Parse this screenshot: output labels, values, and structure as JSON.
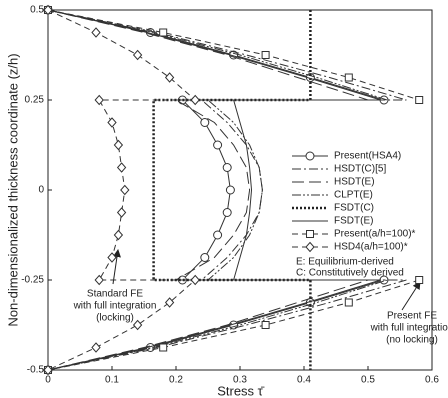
{
  "chart_data": {
    "type": "line",
    "xlabel": "Stress τ̄",
    "ylabel": "Non-dimensionalized thickness coordinate (z/h)",
    "xlim": [
      0,
      0.6
    ],
    "xticks": [
      0,
      0.1,
      0.2,
      0.3,
      0.4,
      0.5,
      0.6
    ],
    "ylim": [
      -0.5,
      0.5
    ],
    "yticks": [
      -0.5,
      -0.25,
      0,
      0.25,
      0.5
    ],
    "legend": "center-right",
    "series": [
      {
        "name": "Present(HSA4)",
        "color": "#333333",
        "dash": "none",
        "marker": "circle",
        "x": [
          0,
          0.16,
          0.29,
          0.41,
          0.525,
          0.21,
          0.245,
          0.265,
          0.28,
          0.285,
          0.28,
          0.265,
          0.245,
          0.21,
          0.525,
          0.41,
          0.29,
          0.16,
          0
        ],
        "y": [
          0.5,
          0.4375,
          0.375,
          0.3125,
          0.25,
          0.25,
          0.1875,
          0.125,
          0.0625,
          0,
          -0.0625,
          -0.125,
          -0.1875,
          -0.25,
          -0.25,
          -0.3125,
          -0.375,
          -0.4375,
          -0.5
        ]
      },
      {
        "name": "HSDT(C)[5]",
        "color": "#333333",
        "dash": "9,3,2,3",
        "marker": "none",
        "x": [
          0,
          0.17,
          0.31,
          0.44,
          0.56,
          0.24,
          0.28,
          0.31,
          0.33,
          0.335,
          0.33,
          0.31,
          0.28,
          0.24,
          0.56,
          0.44,
          0.31,
          0.17,
          0
        ],
        "y": [
          0.5,
          0.4375,
          0.375,
          0.3125,
          0.25,
          0.25,
          0.1875,
          0.125,
          0.0625,
          0,
          -0.0625,
          -0.125,
          -0.1875,
          -0.25,
          -0.25,
          -0.3125,
          -0.375,
          -0.4375,
          -0.5
        ]
      },
      {
        "name": "HSDT(E)",
        "color": "#333333",
        "dash": "12,5",
        "marker": "none",
        "x": [
          0,
          0.15,
          0.28,
          0.39,
          0.5,
          0.2,
          0.26,
          0.29,
          0.31,
          0.315,
          0.31,
          0.29,
          0.26,
          0.2,
          0.5,
          0.39,
          0.28,
          0.15,
          0
        ],
        "y": [
          0.5,
          0.4375,
          0.375,
          0.3125,
          0.25,
          0.25,
          0.1875,
          0.125,
          0.0625,
          0,
          -0.0625,
          -0.125,
          -0.1875,
          -0.25,
          -0.25,
          -0.3125,
          -0.375,
          -0.4375,
          -0.5
        ]
      },
      {
        "name": "CLPT(E)",
        "color": "#333333",
        "dash": "9,2,2,2,2,2",
        "marker": "none",
        "x": [
          0,
          0.165,
          0.3,
          0.42,
          0.53,
          0.25,
          0.29,
          0.315,
          0.33,
          0.335,
          0.33,
          0.315,
          0.29,
          0.25,
          0.53,
          0.42,
          0.3,
          0.165,
          0
        ],
        "y": [
          0.5,
          0.4375,
          0.375,
          0.3125,
          0.25,
          0.25,
          0.1875,
          0.125,
          0.0625,
          0,
          -0.0625,
          -0.125,
          -0.1875,
          -0.25,
          -0.25,
          -0.3125,
          -0.375,
          -0.4375,
          -0.5
        ]
      },
      {
        "name": "FSDT(C)",
        "color": "#222222",
        "dash": "2,2",
        "width": 2.5,
        "marker": "none",
        "x": [
          0.41,
          0.41,
          0.165,
          0.165,
          0.41,
          0.41
        ],
        "y": [
          0.5,
          0.25,
          0.25,
          -0.25,
          -0.25,
          -0.5
        ]
      },
      {
        "name": "FSDT(E)",
        "color": "#333333",
        "dash": "none",
        "marker": "none",
        "x": [
          0,
          0.155,
          0.285,
          0.405,
          0.52,
          0.29,
          0.3,
          0.31,
          0.315,
          0.318,
          0.315,
          0.31,
          0.3,
          0.29,
          0.52,
          0.405,
          0.285,
          0.155,
          0
        ],
        "y": [
          0.5,
          0.4375,
          0.375,
          0.3125,
          0.25,
          0.25,
          0.1875,
          0.125,
          0.0625,
          0,
          -0.0625,
          -0.125,
          -0.1875,
          -0.25,
          -0.25,
          -0.3125,
          -0.375,
          -0.4375,
          -0.5
        ]
      },
      {
        "name": "Present(a/h=100)*",
        "color": "#333333",
        "dash": "6,4",
        "marker": "square",
        "x": [
          0,
          0.18,
          0.34,
          0.47,
          0.58,
          null,
          0.58,
          0.47,
          0.34,
          0.18,
          0
        ],
        "y": [
          0.5,
          0.4375,
          0.375,
          0.3125,
          0.25,
          0,
          -0.25,
          -0.3125,
          -0.375,
          -0.4375,
          -0.5
        ]
      },
      {
        "name": "HSD4(a/h=100)*",
        "color": "#333333",
        "dash": "6,4",
        "marker": "diamond",
        "x": [
          0,
          0.075,
          0.14,
          0.19,
          0.23,
          0.08,
          0.1,
          0.11,
          0.115,
          0.12,
          0.115,
          0.11,
          0.1,
          0.08,
          0.23,
          0.19,
          0.14,
          0.075,
          0
        ],
        "y": [
          0.5,
          0.4375,
          0.375,
          0.3125,
          0.25,
          0.25,
          0.1875,
          0.125,
          0.0625,
          0,
          -0.0625,
          -0.125,
          -0.1875,
          -0.25,
          -0.25,
          -0.3125,
          -0.375,
          -0.4375,
          -0.5
        ]
      }
    ],
    "legend_notes": [
      "E: Equilibrium-derived",
      "C: Constitutively derived"
    ],
    "annotations": [
      {
        "lines": [
          "Standard FE",
          "with full integration",
          "(locking)"
        ]
      },
      {
        "lines": [
          "Present FE",
          "with full integration",
          "(no locking)"
        ]
      }
    ]
  }
}
